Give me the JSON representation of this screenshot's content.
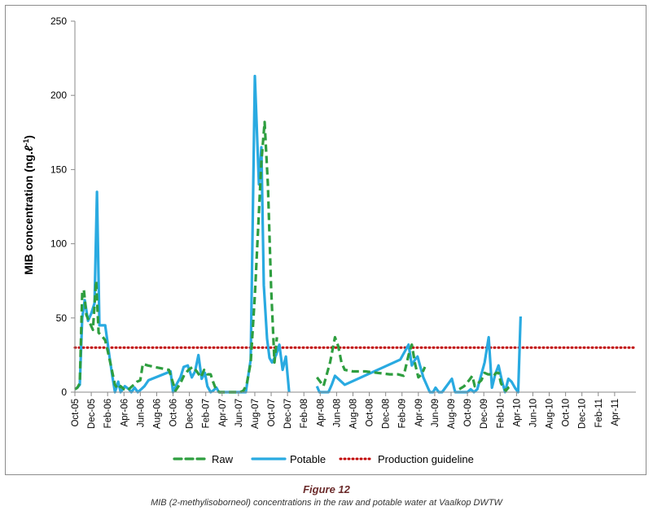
{
  "chart_data": {
    "type": "line",
    "title": "",
    "xlabel": "",
    "ylabel_main": "MIB concentration (ng.",
    "ylabel_script": "ℓ",
    "ylabel_sup": "-1",
    "ylabel_end": ")",
    "ylim": [
      0,
      250
    ],
    "yticks": [
      0,
      50,
      100,
      150,
      200,
      250
    ],
    "x_tick_labels": [
      "Oct-05",
      "Dec-05",
      "Feb-06",
      "Apr-06",
      "Jun-06",
      "Aug-06",
      "Oct-06",
      "Dec-06",
      "Feb-07",
      "Apr-07",
      "Jun-07",
      "Aug-07",
      "Oct-07",
      "Dec-07",
      "Feb-08",
      "Apr-08",
      "Jun-08",
      "Aug-08",
      "Oct-08",
      "Dec-08",
      "Feb-09",
      "Apr-09",
      "Jun-09",
      "Aug-09",
      "Oct-09",
      "Dec-09",
      "Feb-10",
      "Apr-10",
      "Jun-10",
      "Aug-10",
      "Oct-10",
      "Dec-10",
      "Feb-11",
      "Apr-11"
    ],
    "x_unit": "month index from Oct-05",
    "guideline": {
      "name": "Production guideline",
      "value": 30,
      "color": "#c00000"
    },
    "series": [
      {
        "name": "Raw",
        "color": "#2e9e3f",
        "segments": [
          [
            [
              0.0,
              2
            ],
            [
              0.3,
              3
            ],
            [
              0.6,
              6
            ],
            [
              0.9,
              67
            ],
            [
              1.1,
              69
            ],
            [
              1.4,
              52
            ],
            [
              1.8,
              47
            ],
            [
              2.2,
              42
            ],
            [
              2.6,
              75
            ],
            [
              2.9,
              40
            ],
            [
              3.3,
              38
            ],
            [
              3.7,
              35
            ],
            [
              4.0,
              28
            ],
            [
              4.4,
              18
            ],
            [
              4.9,
              5
            ],
            [
              5.3,
              2
            ],
            [
              5.6,
              4
            ],
            [
              6.0,
              2
            ],
            [
              6.4,
              1
            ],
            [
              6.8,
              3
            ],
            [
              7.2,
              5
            ],
            [
              7.6,
              7
            ],
            [
              8.0,
              8
            ],
            [
              8.3,
              19
            ],
            [
              8.9,
              18
            ],
            [
              9.7,
              17
            ],
            [
              10.6,
              16
            ],
            [
              11.5,
              15
            ],
            [
              12.3,
              1
            ],
            [
              12.9,
              6
            ],
            [
              13.4,
              12
            ],
            [
              13.9,
              15
            ],
            [
              14.4,
              17
            ],
            [
              14.9,
              14
            ],
            [
              15.4,
              10
            ],
            [
              15.8,
              15
            ],
            [
              16.2,
              12
            ],
            [
              16.6,
              12
            ],
            [
              16.9,
              7
            ],
            [
              17.3,
              1
            ],
            [
              17.7,
              0
            ],
            [
              18.1,
              0
            ],
            [
              18.5,
              0
            ],
            [
              18.9,
              0
            ],
            [
              19.3,
              0
            ],
            [
              19.7,
              0
            ],
            [
              20.2,
              0
            ],
            [
              20.6,
              1
            ],
            [
              21.0,
              5
            ],
            [
              21.5,
              20
            ],
            [
              22.0,
              65
            ],
            [
              22.4,
              110
            ],
            [
              22.8,
              155
            ],
            [
              23.2,
              182
            ],
            [
              23.6,
              140
            ],
            [
              24.0,
              70
            ],
            [
              24.4,
              20
            ],
            [
              24.7,
              37
            ]
          ],
          [
            [
              29.6,
              10
            ],
            [
              30.0,
              7
            ],
            [
              30.4,
              4
            ],
            [
              31.2,
              20
            ],
            [
              31.8,
              37
            ],
            [
              32.2,
              31
            ],
            [
              32.6,
              20
            ],
            [
              33.0,
              15
            ],
            [
              34.0,
              14
            ],
            [
              35.5,
              14
            ],
            [
              37.0,
              13
            ],
            [
              38.5,
              12
            ],
            [
              39.5,
              12
            ],
            [
              40.2,
              11
            ],
            [
              40.8,
              25
            ],
            [
              41.2,
              32
            ],
            [
              41.6,
              19
            ],
            [
              42.0,
              10
            ],
            [
              42.4,
              12
            ],
            [
              42.8,
              17
            ]
          ],
          [
            [
              47.0,
              2
            ],
            [
              47.6,
              4
            ],
            [
              48.2,
              8
            ],
            [
              48.6,
              11
            ],
            [
              48.9,
              4
            ],
            [
              49.3,
              6
            ],
            [
              49.7,
              8
            ],
            [
              50.1,
              13
            ],
            [
              50.5,
              12
            ],
            [
              50.9,
              12
            ],
            [
              51.2,
              11
            ],
            [
              51.5,
              13
            ],
            [
              51.8,
              13
            ],
            [
              52.1,
              6
            ],
            [
              52.4,
              3
            ],
            [
              52.7,
              1
            ],
            [
              53.0,
              3
            ],
            [
              53.3,
              4
            ]
          ]
        ]
      },
      {
        "name": "Potable",
        "color": "#29aae1",
        "segments": [
          [
            [
              0.0,
              2
            ],
            [
              0.3,
              3
            ],
            [
              0.6,
              5
            ],
            [
              0.9,
              50
            ],
            [
              1.2,
              62
            ],
            [
              1.6,
              48
            ],
            [
              2.0,
              53
            ],
            [
              2.4,
              60
            ],
            [
              2.7,
              135
            ],
            [
              3.0,
              45
            ],
            [
              3.4,
              45
            ],
            [
              3.7,
              45
            ],
            [
              4.2,
              25
            ],
            [
              4.6,
              10
            ],
            [
              4.9,
              0
            ],
            [
              5.3,
              7
            ],
            [
              5.6,
              0
            ],
            [
              6.1,
              4
            ],
            [
              6.6,
              2
            ],
            [
              6.9,
              0
            ],
            [
              7.3,
              3
            ],
            [
              7.7,
              0
            ],
            [
              8.1,
              2
            ],
            [
              8.5,
              4
            ],
            [
              9.0,
              8
            ],
            [
              11.7,
              14
            ],
            [
              12.0,
              0
            ],
            [
              12.5,
              6
            ],
            [
              12.9,
              10
            ],
            [
              13.3,
              17
            ],
            [
              13.8,
              18
            ],
            [
              14.3,
              10
            ],
            [
              14.7,
              14
            ],
            [
              15.1,
              25
            ],
            [
              15.5,
              9
            ],
            [
              15.9,
              13
            ],
            [
              16.2,
              4
            ],
            [
              16.6,
              0
            ],
            [
              16.9,
              1
            ],
            [
              17.3,
              3
            ],
            [
              17.6,
              0
            ],
            [
              18.0,
              0
            ],
            [
              18.5,
              0
            ],
            [
              18.9,
              0
            ],
            [
              19.3,
              0
            ],
            [
              19.7,
              0
            ],
            [
              20.1,
              0
            ],
            [
              20.5,
              0
            ],
            [
              20.9,
              0
            ],
            [
              21.5,
              22
            ],
            [
              22.0,
              213
            ],
            [
              22.5,
              140
            ],
            [
              22.8,
              165
            ],
            [
              23.1,
              72
            ],
            [
              23.5,
              36
            ],
            [
              23.8,
              23
            ],
            [
              24.1,
              20
            ],
            [
              24.6,
              25
            ],
            [
              25.0,
              32
            ],
            [
              25.4,
              15
            ],
            [
              25.8,
              24
            ],
            [
              26.2,
              0
            ]
          ],
          [
            [
              29.6,
              4
            ],
            [
              29.9,
              0
            ],
            [
              30.3,
              0
            ],
            [
              30.7,
              0
            ],
            [
              31.0,
              0
            ],
            [
              31.4,
              5
            ],
            [
              31.8,
              11
            ],
            [
              33.0,
              5
            ],
            [
              39.8,
              22
            ],
            [
              40.8,
              32
            ],
            [
              41.2,
              18
            ],
            [
              41.6,
              22
            ],
            [
              41.9,
              24
            ],
            [
              42.2,
              18
            ],
            [
              42.6,
              10
            ],
            [
              43.0,
              5
            ],
            [
              43.4,
              0
            ],
            [
              43.8,
              0
            ],
            [
              44.1,
              3
            ],
            [
              44.5,
              0
            ],
            [
              44.9,
              0
            ],
            [
              45.3,
              3
            ],
            [
              45.7,
              6
            ],
            [
              46.1,
              9
            ],
            [
              46.5,
              0
            ],
            [
              46.9,
              0
            ],
            [
              47.5,
              0
            ],
            [
              48.0,
              0
            ],
            [
              48.4,
              2
            ],
            [
              48.8,
              0
            ],
            [
              49.2,
              2
            ],
            [
              49.6,
              10
            ],
            [
              50.1,
              20
            ],
            [
              50.6,
              37
            ],
            [
              51.0,
              3
            ],
            [
              51.4,
              12
            ],
            [
              51.8,
              18
            ],
            [
              52.2,
              8
            ],
            [
              52.6,
              0
            ],
            [
              53.0,
              9
            ],
            [
              53.4,
              7
            ],
            [
              53.8,
              3
            ],
            [
              54.2,
              0
            ],
            [
              54.5,
              51
            ]
          ]
        ]
      }
    ],
    "legend": [
      "Raw",
      "Potable",
      "Production guideline"
    ],
    "legend_position": "bottom"
  },
  "caption": {
    "figure_label": "Figure 12",
    "text": "MIB (2-methylisoborneol) concentrations in the raw and potable water at Vaalkop DWTW"
  }
}
